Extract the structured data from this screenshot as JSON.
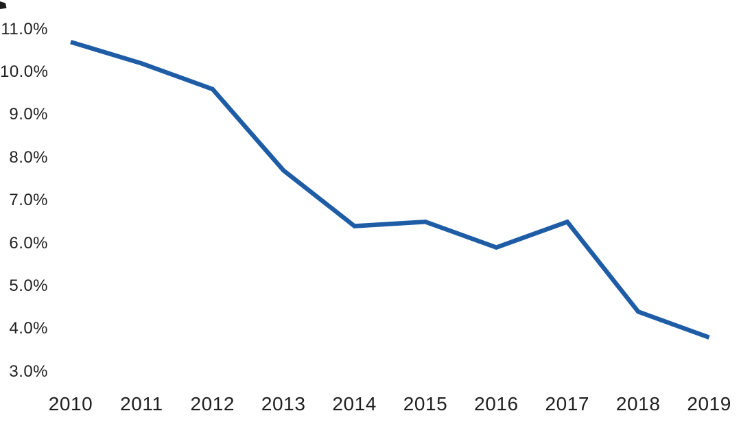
{
  "chart_data": {
    "type": "line",
    "title": "",
    "xlabel": "",
    "ylabel": "",
    "categories": [
      "2010",
      "2011",
      "2012",
      "2013",
      "2014",
      "2015",
      "2016",
      "2017",
      "2018",
      "2019"
    ],
    "values": [
      10.7,
      10.2,
      9.6,
      7.7,
      6.4,
      6.5,
      5.9,
      6.5,
      4.4,
      3.8
    ],
    "y_axis": {
      "tick_labels": [
        "11.0%",
        "10.0%",
        "9.0%",
        "8.0%",
        "7.0%",
        "6.0%",
        "5.0%",
        "4.0%",
        "3.0%"
      ],
      "tick_values": [
        11.0,
        10.0,
        9.0,
        8.0,
        7.0,
        6.0,
        5.0,
        4.0,
        3.0
      ],
      "min": 3.0,
      "max": 11.0
    },
    "grid": false,
    "legend": false,
    "line_color": "#1e5da6",
    "text_color": "#1f1f1f",
    "background_color": "#ffffff"
  }
}
